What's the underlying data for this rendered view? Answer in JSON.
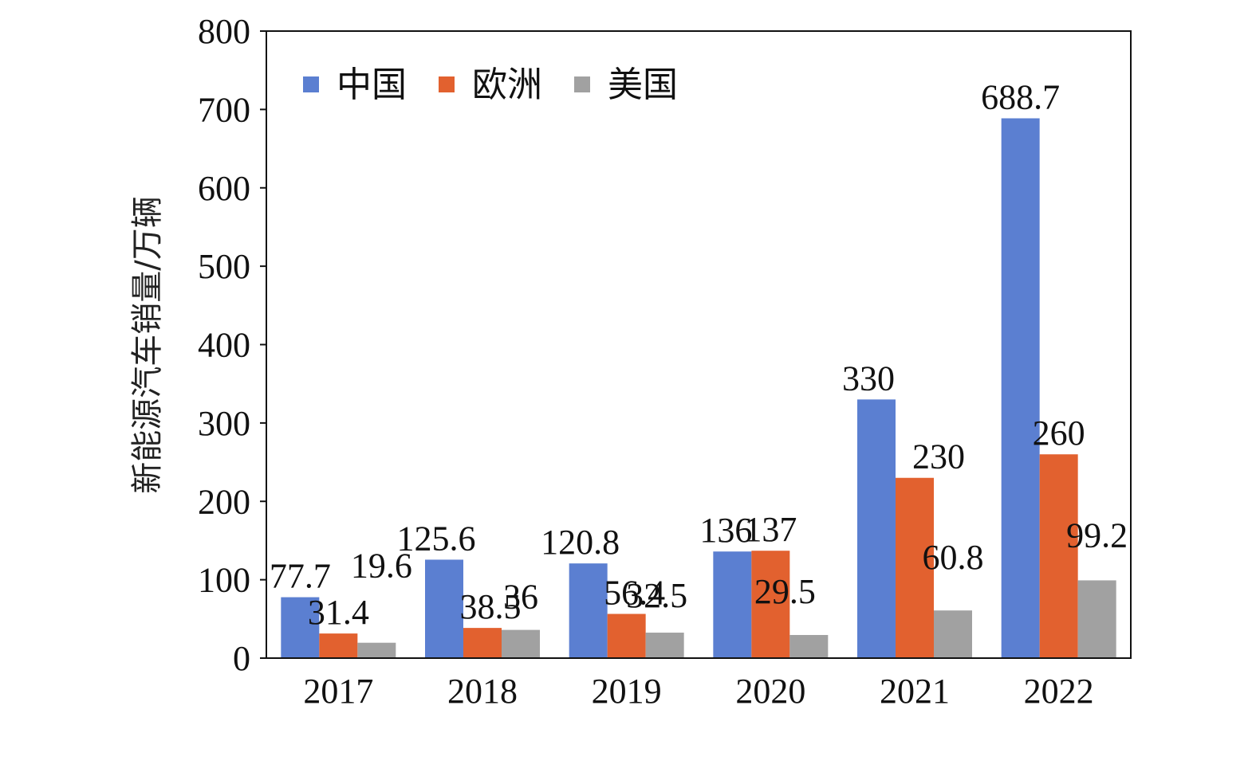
{
  "chart_data": {
    "type": "bar",
    "categories": [
      "2017",
      "2018",
      "2019",
      "2020",
      "2021",
      "2022"
    ],
    "series": [
      {
        "name": "中国",
        "color": "#5B7FD1",
        "values": [
          77.7,
          125.6,
          120.8,
          136,
          330,
          688.7
        ]
      },
      {
        "name": "欧洲",
        "color": "#E2612F",
        "values": [
          31.4,
          38.5,
          56.4,
          137,
          230,
          260
        ]
      },
      {
        "name": "美国",
        "color": "#A1A1A1",
        "values": [
          19.6,
          36,
          32.5,
          29.5,
          60.8,
          99.2
        ]
      }
    ],
    "data_labels": [
      [
        "77.7",
        "125.6",
        "120.8",
        "136",
        "330",
        "688.7"
      ],
      [
        "31.4",
        "38.5",
        "56.4",
        "137",
        "230",
        "260"
      ],
      [
        "19.6",
        "36",
        "32.5",
        "29.5",
        "60.8",
        "99.2"
      ]
    ],
    "ylabel": "新能源汽车销量/万辆",
    "xlabel": "",
    "ylim": [
      0,
      800
    ],
    "yticks": [
      "0",
      "100",
      "200",
      "300",
      "400",
      "500",
      "600",
      "700",
      "800"
    ],
    "grid": false,
    "legend_position": "top-left"
  }
}
